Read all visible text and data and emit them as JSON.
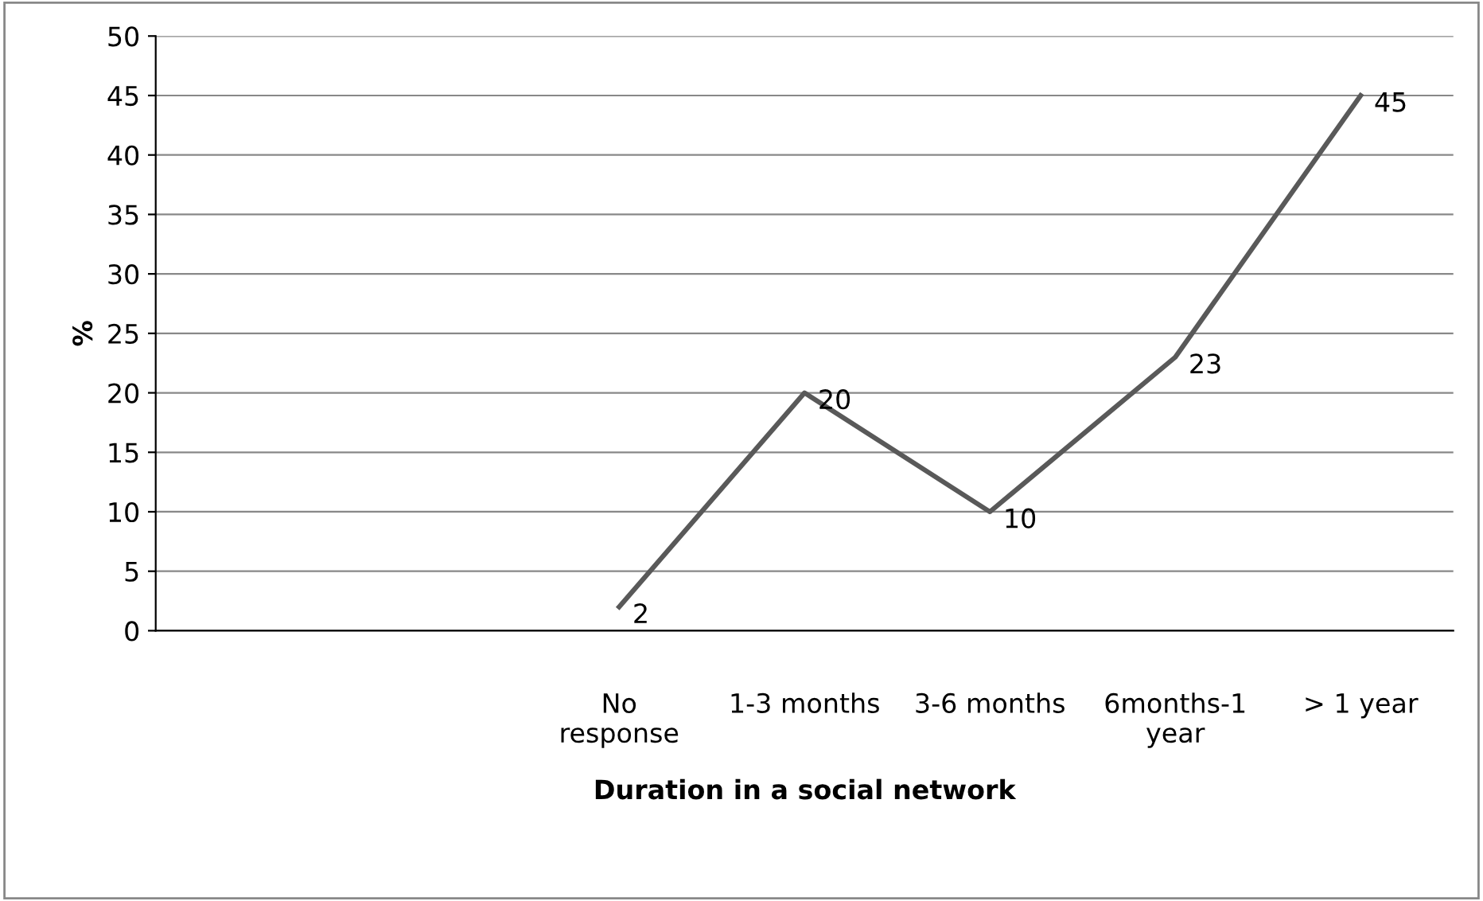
{
  "chart_data": {
    "type": "line",
    "xlabel": "Duration in a social network",
    "ylabel": "%",
    "categories": [
      null,
      null,
      "No\nresponse",
      "1-3 months",
      "3-6 months",
      "6months-1\nyear",
      "> 1 year"
    ],
    "series": [
      {
        "color": "#595959",
        "values": [
          null,
          null,
          2,
          20,
          10,
          23,
          45
        ]
      }
    ],
    "ylim": [
      0,
      50
    ],
    "yticks": [
      0,
      5,
      10,
      15,
      20,
      25,
      30,
      35,
      40,
      45,
      50
    ],
    "grid": "y",
    "data_labels": true,
    "legend": false,
    "marker": "none",
    "line_style": "solid"
  }
}
